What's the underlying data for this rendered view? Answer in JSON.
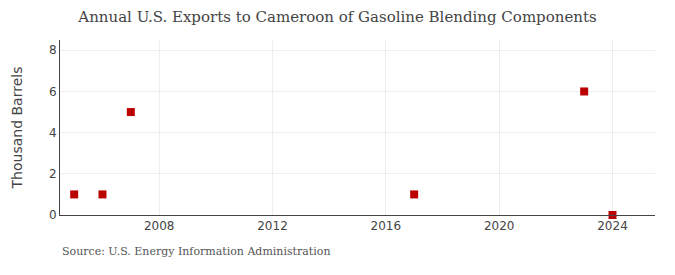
{
  "chart_data": {
    "type": "scatter",
    "title": "Annual U.S. Exports to Cameroon of Gasoline Blending Components",
    "ylabel": "Thousand Barrels",
    "annotations": [
      "Source: U.S. Energy Information Administration"
    ],
    "x": [
      2005,
      2006,
      2007,
      2017,
      2023,
      2024
    ],
    "values": [
      1,
      1,
      5,
      1,
      6,
      0
    ],
    "color": "#bb0000",
    "marker": "square",
    "xlim": [
      2004.5,
      2025.5
    ],
    "xticks": [
      2008,
      2012,
      2016,
      2020,
      2024
    ],
    "ylim": [
      0,
      8.5
    ],
    "yticks": [
      0,
      2,
      4,
      6,
      8
    ],
    "grid": true
  }
}
